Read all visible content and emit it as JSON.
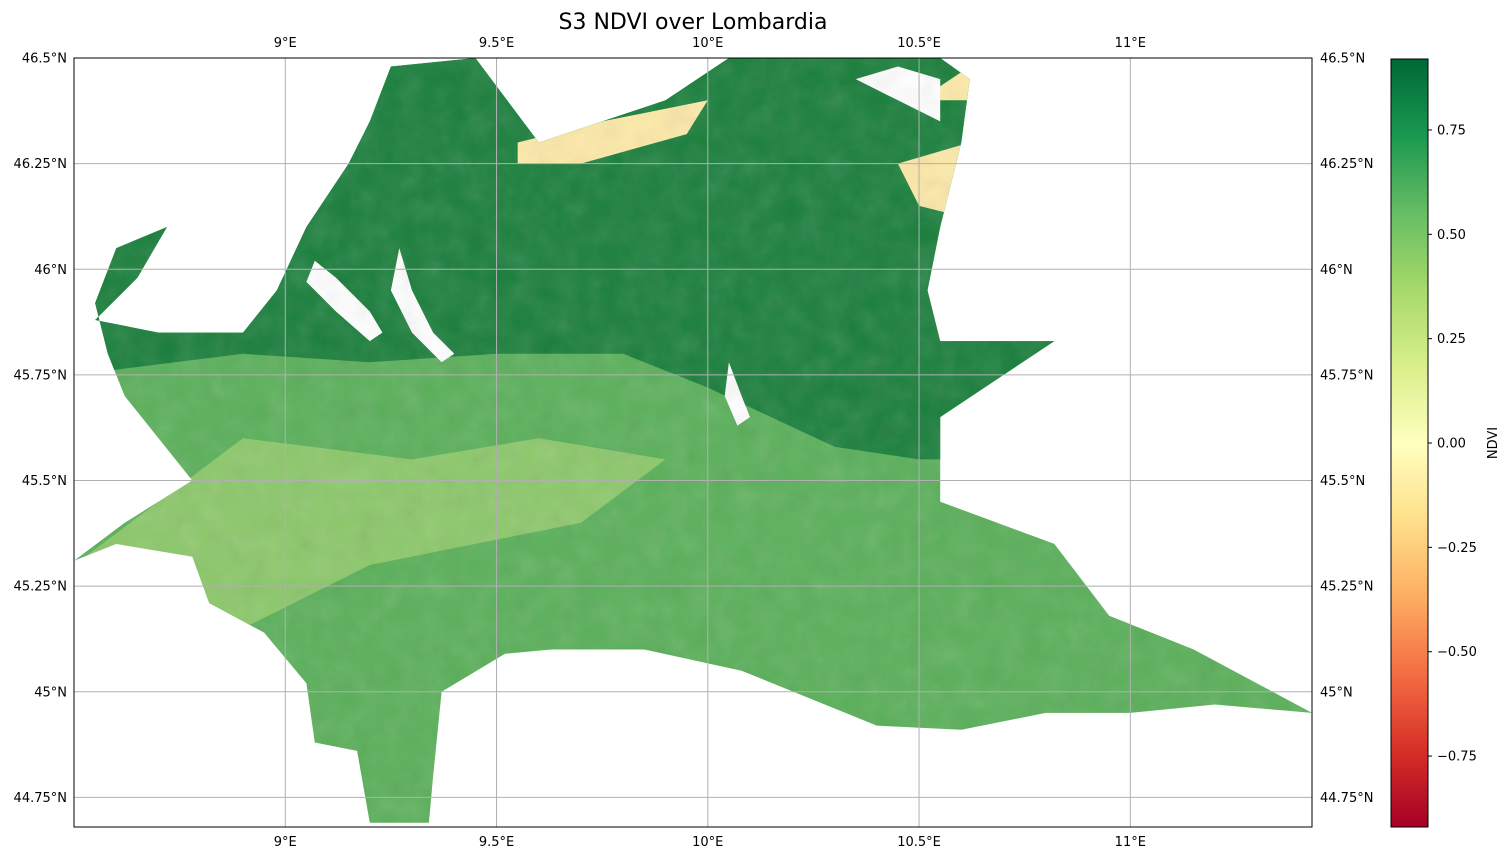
{
  "title": "S3 NDVI over Lombardia",
  "map": {
    "lon_range": [
      8.5,
      11.43
    ],
    "lat_range": [
      44.68,
      46.5
    ],
    "grid": true,
    "lon_ticks": [
      {
        "value": 9.0,
        "label": "9°E"
      },
      {
        "value": 9.5,
        "label": "9.5°E"
      },
      {
        "value": 10.0,
        "label": "10°E"
      },
      {
        "value": 10.5,
        "label": "10.5°E"
      },
      {
        "value": 11.0,
        "label": "11°E"
      }
    ],
    "lat_ticks": [
      {
        "value": 46.5,
        "label": "46.5°N"
      },
      {
        "value": 46.25,
        "label": "46.25°N"
      },
      {
        "value": 46.0,
        "label": "46°N"
      },
      {
        "value": 45.75,
        "label": "45.75°N"
      },
      {
        "value": 45.5,
        "label": "45.5°N"
      },
      {
        "value": 45.25,
        "label": "45.25°N"
      },
      {
        "value": 45.0,
        "label": "45°N"
      },
      {
        "value": 44.75,
        "label": "44.75°N"
      }
    ],
    "region_outline_lonlat": [
      [
        8.5,
        45.31
      ],
      [
        8.6,
        45.35
      ],
      [
        8.78,
        45.32
      ],
      [
        8.82,
        45.21
      ],
      [
        8.95,
        45.14
      ],
      [
        9.05,
        45.02
      ],
      [
        9.07,
        44.88
      ],
      [
        9.17,
        44.86
      ],
      [
        9.2,
        44.69
      ],
      [
        9.34,
        44.69
      ],
      [
        9.35,
        44.8
      ],
      [
        9.37,
        45.0
      ],
      [
        9.52,
        45.09
      ],
      [
        9.63,
        45.1
      ],
      [
        9.85,
        45.1
      ],
      [
        10.08,
        45.05
      ],
      [
        10.4,
        44.92
      ],
      [
        10.6,
        44.91
      ],
      [
        10.8,
        44.95
      ],
      [
        11.0,
        44.95
      ],
      [
        11.2,
        44.97
      ],
      [
        11.43,
        44.95
      ],
      [
        11.15,
        45.1
      ],
      [
        10.95,
        45.18
      ],
      [
        10.82,
        45.35
      ],
      [
        10.55,
        45.45
      ],
      [
        10.55,
        45.65
      ],
      [
        10.7,
        45.75
      ],
      [
        10.82,
        45.83
      ],
      [
        10.55,
        45.83
      ],
      [
        10.52,
        45.95
      ],
      [
        10.55,
        46.1
      ],
      [
        10.6,
        46.3
      ],
      [
        10.62,
        46.45
      ],
      [
        10.55,
        46.5
      ],
      [
        10.35,
        46.5
      ],
      [
        10.15,
        46.5
      ],
      [
        10.05,
        46.5
      ],
      [
        9.9,
        46.4
      ],
      [
        9.6,
        46.3
      ],
      [
        9.45,
        46.5
      ],
      [
        9.25,
        46.48
      ],
      [
        9.2,
        46.35
      ],
      [
        9.15,
        46.25
      ],
      [
        9.05,
        46.1
      ],
      [
        8.98,
        45.95
      ],
      [
        8.9,
        45.85
      ],
      [
        8.7,
        45.85
      ],
      [
        8.55,
        45.88
      ],
      [
        8.65,
        45.98
      ],
      [
        8.72,
        46.1
      ],
      [
        8.6,
        46.05
      ],
      [
        8.55,
        45.92
      ],
      [
        8.58,
        45.8
      ],
      [
        8.62,
        45.7
      ],
      [
        8.7,
        45.6
      ],
      [
        8.78,
        45.5
      ],
      [
        8.62,
        45.4
      ],
      [
        8.5,
        45.31
      ]
    ],
    "lakes_lonlat": [
      [
        [
          9.07,
          46.02
        ],
        [
          9.12,
          45.98
        ],
        [
          9.2,
          45.9
        ],
        [
          9.23,
          45.85
        ],
        [
          9.2,
          45.83
        ],
        [
          9.12,
          45.9
        ],
        [
          9.05,
          45.97
        ]
      ],
      [
        [
          9.27,
          46.05
        ],
        [
          9.3,
          45.95
        ],
        [
          9.35,
          45.85
        ],
        [
          9.4,
          45.8
        ],
        [
          9.37,
          45.78
        ],
        [
          9.3,
          45.85
        ],
        [
          9.25,
          45.95
        ]
      ],
      [
        [
          10.05,
          45.78
        ],
        [
          10.08,
          45.7
        ],
        [
          10.1,
          45.65
        ],
        [
          10.07,
          45.63
        ],
        [
          10.04,
          45.7
        ]
      ],
      [
        [
          10.35,
          46.45
        ],
        [
          10.45,
          46.4
        ],
        [
          10.55,
          46.35
        ],
        [
          10.55,
          46.45
        ],
        [
          10.45,
          46.48
        ]
      ]
    ]
  },
  "colorbar": {
    "label": "NDVI",
    "colormap": "RdYlGn",
    "range": [
      -0.92,
      0.92
    ],
    "ticks": [
      {
        "value": 0.75,
        "label": "0.75"
      },
      {
        "value": 0.5,
        "label": "0.50"
      },
      {
        "value": 0.25,
        "label": "0.25"
      },
      {
        "value": 0.0,
        "label": "0.00"
      },
      {
        "value": -0.25,
        "label": "−0.25"
      },
      {
        "value": -0.5,
        "label": "−0.50"
      },
      {
        "value": -0.75,
        "label": "−0.75"
      }
    ],
    "stops": [
      "#a50026",
      "#d73027",
      "#f46d43",
      "#fdae61",
      "#fee08b",
      "#ffffbf",
      "#d9ef8b",
      "#a6d96a",
      "#66bd63",
      "#1a9850",
      "#006837"
    ]
  },
  "colors": {
    "dense_vegetation": "#1a7f3c",
    "mid_vegetation": "#5ab05a",
    "light_vegetation": "#b6dc78",
    "bare": "#fde9a8",
    "water": "#ffffff",
    "grid": "#b0b0b0"
  }
}
